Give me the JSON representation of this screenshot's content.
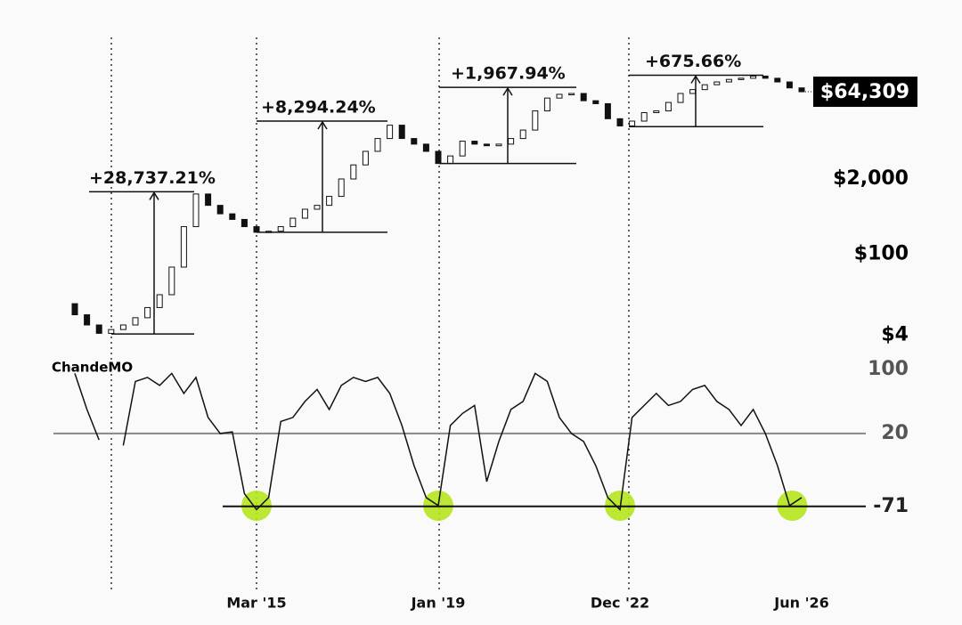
{
  "chart_data": [
    {
      "type": "candlestick",
      "categories": [
        null,
        null,
        null,
        null,
        null,
        null,
        null,
        null,
        null,
        null,
        null,
        null,
        null,
        null,
        null,
        "Mar '15",
        null,
        null,
        null,
        null,
        null,
        null,
        null,
        null,
        null,
        null,
        null,
        null,
        null,
        null,
        "Jan '19",
        null,
        null,
        null,
        null,
        null,
        null,
        null,
        null,
        null,
        null,
        null,
        null,
        null,
        null,
        "Dec '22",
        null,
        null,
        null,
        null,
        null,
        null,
        null,
        null,
        null,
        null,
        null,
        null,
        null,
        null,
        "Jun '26"
      ],
      "open": [
        14,
        9,
        6,
        4.3,
        5,
        6,
        8,
        12,
        20,
        60,
        300,
        1100,
        700,
        500,
        400,
        300,
        240,
        250,
        300,
        420,
        600,
        700,
        1000,
        2000,
        3500,
        6000,
        10000,
        17000,
        10000,
        8000,
        6000,
        3700,
        5000,
        9000,
        8000,
        7500,
        8000,
        10000,
        14000,
        30000,
        50000,
        58000,
        60000,
        45000,
        40000,
        22000,
        16500,
        20000,
        28000,
        30000,
        42000,
        60000,
        70000,
        85000,
        95000,
        105000,
        110000,
        120000,
        110000,
        95000,
        75000
      ],
      "close": [
        9,
        6,
        4.3,
        5,
        6,
        8,
        12,
        20,
        60,
        300,
        1100,
        700,
        500,
        400,
        300,
        240,
        250,
        300,
        420,
        600,
        700,
        1000,
        2000,
        3500,
        6000,
        10000,
        17000,
        10000,
        8000,
        6000,
        3700,
        5000,
        9000,
        8000,
        7500,
        8000,
        10000,
        14000,
        30000,
        50000,
        58000,
        60000,
        45000,
        40000,
        22000,
        16500,
        20000,
        28000,
        30000,
        42000,
        60000,
        70000,
        85000,
        95000,
        105000,
        110000,
        120000,
        110000,
        95000,
        75000,
        64309
      ],
      "log_scale": true,
      "ylim": [
        1.7,
        600000
      ],
      "yticks": [
        {
          "value": 4,
          "label": "$4"
        },
        {
          "value": 100,
          "label": "$100"
        },
        {
          "value": 2000,
          "label": "$2,000"
        }
      ],
      "last_price": {
        "value": 64309,
        "label": "$64,309"
      },
      "annotations": [
        {
          "label": "+28,737.21%",
          "low": 4.2,
          "high": 1200
        },
        {
          "label": "+8,294.24%",
          "low": 240,
          "high": 20000
        },
        {
          "label": "+1,967.94%",
          "low": 3700,
          "high": 76500
        },
        {
          "label": "+675.66%",
          "low": 16000,
          "high": 124000
        }
      ]
    },
    {
      "type": "line",
      "title": "ChandeMO",
      "values": [
        95,
        50,
        12,
        null,
        5,
        85,
        90,
        80,
        95,
        70,
        90,
        40,
        20,
        22,
        -55,
        -75,
        -60,
        35,
        40,
        60,
        75,
        50,
        80,
        90,
        85,
        90,
        70,
        30,
        -20,
        -60,
        -70,
        30,
        45,
        55,
        -40,
        10,
        50,
        60,
        95,
        85,
        40,
        20,
        10,
        -20,
        -60,
        -75,
        40,
        55,
        70,
        55,
        60,
        75,
        80,
        60,
        50,
        30,
        50,
        20,
        -20,
        -70,
        -60
      ],
      "ylim": [
        -105,
        111
      ],
      "yticks": [
        100,
        20,
        -71
      ]
    }
  ]
}
